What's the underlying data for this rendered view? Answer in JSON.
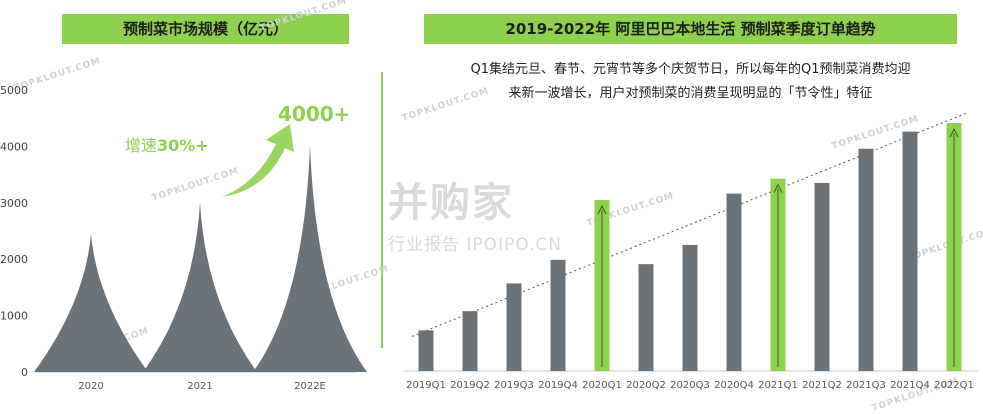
{
  "left_title": "预制菜市场规模（亿元）",
  "right_title": "2019-2022年 阿里巴巴本地生活 预制菜季度订单趋势",
  "right_note_line1": "Q1集结元旦、春节、元宵节等多个庆贺节日，所以每年的Q1预制菜消费均迎",
  "right_note_line2": "来新一波增长，用户对预制菜的消费呈现明显的「节令性」特征",
  "watermark": "TOPKLOUT.COM",
  "brand_name": "并购家",
  "brand_sub": "行业报告 IPOIPO.CN",
  "colors": {
    "accent": "#8dd14f",
    "gray": "#6b7278"
  },
  "chart_data": [
    {
      "type": "area",
      "title": "预制菜市场规模（亿元）",
      "categories": [
        "2020",
        "2021",
        "2022E"
      ],
      "values": [
        2450,
        3000,
        4020
      ],
      "yticks": [
        0,
        1000,
        2000,
        3000,
        4000,
        5000
      ],
      "ylim": [
        0,
        5000
      ],
      "annotations": {
        "growth_prefix": "增速",
        "growth_value": "30%+",
        "target_label": "4000+"
      }
    },
    {
      "type": "bar",
      "title": "2019-2022年 阿里巴巴本地生活 预制菜季度订单趋势",
      "categories": [
        "2019Q1",
        "2019Q2",
        "2019Q3",
        "2019Q4",
        "2020Q1",
        "2020Q2",
        "2020Q3",
        "2020Q4",
        "2021Q1",
        "2021Q2",
        "2021Q3",
        "2021Q4",
        "2022Q1"
      ],
      "values": [
        0.95,
        1.4,
        2.05,
        2.6,
        4.0,
        2.5,
        2.95,
        4.15,
        4.5,
        4.4,
        5.2,
        5.6,
        5.8
      ],
      "highlight": [
        "2020Q1",
        "2021Q1",
        "2022Q1"
      ],
      "ylim": [
        0,
        6.2
      ],
      "trend": [
        0.95,
        6.0
      ]
    }
  ]
}
